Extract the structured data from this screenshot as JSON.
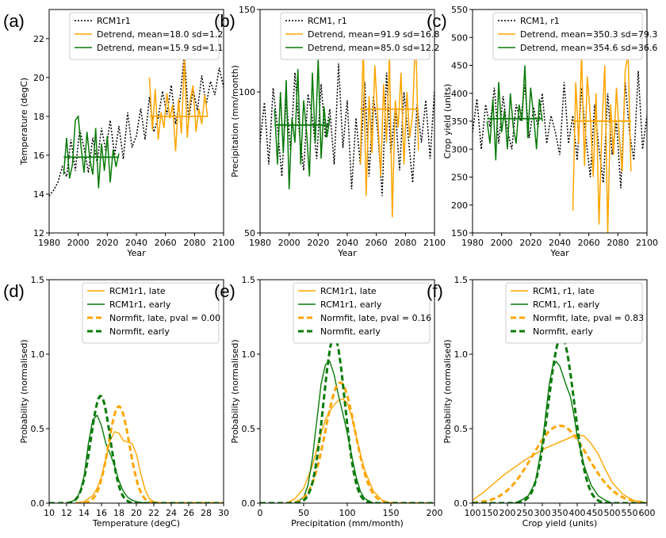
{
  "colors": {
    "model": "#000000",
    "late": "#ffa500",
    "early": "#087a08"
  },
  "chart_data": [
    {
      "type": "line",
      "panel": "(a)",
      "xlabel": "Year",
      "ylabel": "Temperature (degC)",
      "xlim": [
        1980,
        2100
      ],
      "ylim": [
        12,
        23.5
      ],
      "xticks": [
        1980,
        2000,
        2020,
        2040,
        2060,
        2080,
        2100
      ],
      "yticks": [
        12,
        14,
        16,
        18,
        20,
        22
      ],
      "legend": [
        "RCM1r1",
        "Detrend, mean=18.0 sd=1.2",
        "Detrend, mean=15.9 sd=1.1"
      ],
      "legend_placement": "top-right",
      "early_range": [
        1990,
        2028
      ],
      "late_range": [
        2049,
        2089
      ],
      "early_mean": 15.9,
      "late_mean": 18.0,
      "series": [
        {
          "role": "model",
          "x": [
            1980,
            1983,
            1986,
            1989,
            1992,
            1995,
            1998,
            2001,
            2004,
            2007,
            2010,
            2013,
            2016,
            2019,
            2022,
            2025,
            2028,
            2031,
            2034,
            2037,
            2040,
            2043,
            2046,
            2049,
            2052,
            2055,
            2058,
            2061,
            2064,
            2067,
            2070,
            2073,
            2076,
            2079,
            2082,
            2085,
            2088,
            2091,
            2094,
            2097,
            2100
          ],
          "y": [
            13.9,
            14.2,
            14.6,
            15.4,
            14.9,
            16.8,
            15.2,
            17.3,
            16.4,
            15.1,
            16.9,
            15.6,
            17.4,
            16.2,
            17.8,
            16.0,
            17.5,
            15.8,
            18.2,
            16.4,
            17.0,
            18.4,
            16.8,
            19.0,
            17.2,
            17.9,
            19.3,
            18.1,
            19.6,
            17.6,
            18.9,
            21.2,
            17.8,
            19.4,
            18.3,
            20.1,
            18.6,
            19.8,
            19.1,
            20.5,
            19.5
          ]
        },
        {
          "role": "early",
          "x": [
            1990,
            1992,
            1994,
            1996,
            1998,
            2000,
            2002,
            2004,
            2006,
            2008,
            2010,
            2012,
            2014,
            2016,
            2018,
            2020,
            2022,
            2024,
            2026,
            2028
          ],
          "y": [
            15.0,
            16.9,
            14.8,
            15.5,
            17.8,
            18.0,
            16.4,
            15.1,
            17.2,
            15.8,
            15.0,
            17.4,
            14.3,
            16.6,
            15.2,
            17.0,
            14.6,
            16.3,
            15.4,
            16.1
          ]
        },
        {
          "role": "late",
          "x": [
            2049,
            2051,
            2053,
            2055,
            2057,
            2059,
            2061,
            2063,
            2065,
            2067,
            2069,
            2071,
            2073,
            2075,
            2077,
            2079,
            2081,
            2083,
            2085,
            2087,
            2089
          ],
          "y": [
            20.0,
            17.3,
            19.4,
            16.8,
            18.2,
            17.4,
            19.2,
            17.9,
            18.6,
            16.2,
            18.9,
            17.1,
            21.0,
            16.9,
            18.8,
            19.6,
            17.2,
            18.4,
            17.6,
            19.1,
            18.0
          ]
        }
      ]
    },
    {
      "type": "line",
      "panel": "(b)",
      "xlabel": "Year",
      "ylabel": "Precipitation (mm/month)",
      "xlim": [
        1980,
        2100
      ],
      "ylim": [
        50,
        150
      ],
      "log_y": true,
      "xticks": [
        1980,
        2000,
        2020,
        2040,
        2060,
        2080,
        2100
      ],
      "yticks": [
        50,
        100,
        150
      ],
      "legend": [
        "RCM1, r1",
        "Detrend, mean=91.9 sd=16.8",
        "Detrend, mean=85.0 sd=12.2"
      ],
      "legend_placement": "top-right",
      "early_range": [
        1990,
        2028
      ],
      "late_range": [
        2049,
        2089
      ],
      "early_mean": 85.0,
      "late_mean": 91.9,
      "series": [
        {
          "role": "model",
          "x": [
            1980,
            1983,
            1986,
            1989,
            1992,
            1995,
            1998,
            2001,
            2004,
            2007,
            2010,
            2013,
            2016,
            2019,
            2022,
            2025,
            2028,
            2031,
            2034,
            2037,
            2040,
            2043,
            2046,
            2049,
            2052,
            2055,
            2058,
            2061,
            2064,
            2067,
            2070,
            2073,
            2076,
            2079,
            2082,
            2085,
            2088,
            2091,
            2094,
            2097,
            2100
          ],
          "y": [
            78,
            95,
            70,
            102,
            84,
            66,
            97,
            75,
            110,
            82,
            68,
            99,
            88,
            72,
            104,
            80,
            92,
            70,
            115,
            76,
            96,
            62,
            88,
            70,
            105,
            66,
            98,
            82,
            60,
            110,
            74,
            92,
            68,
            100,
            80,
            64,
            94,
            78,
            96,
            72,
            101
          ]
        },
        {
          "role": "early",
          "x": [
            1990,
            1992,
            1994,
            1996,
            1998,
            2000,
            2002,
            2004,
            2006,
            2008,
            2010,
            2012,
            2014,
            2016,
            2018,
            2020,
            2022,
            2024,
            2026,
            2028
          ],
          "y": [
            92,
            70,
            100,
            74,
            106,
            62,
            88,
            78,
            112,
            70,
            96,
            82,
            66,
            110,
            78,
            118,
            72,
            93,
            80,
            88
          ]
        },
        {
          "role": "late",
          "x": [
            2049,
            2051,
            2053,
            2055,
            2057,
            2059,
            2061,
            2063,
            2065,
            2067,
            2069,
            2071,
            2073,
            2075,
            2077,
            2079,
            2081,
            2083,
            2085,
            2087,
            2089
          ],
          "y": [
            70,
            126,
            60,
            98,
            74,
            114,
            88,
            66,
            104,
            78,
            120,
            54,
            96,
            84,
            110,
            70,
            100,
            80,
            90,
            136,
            75
          ]
        }
      ]
    },
    {
      "type": "line",
      "panel": "(c)",
      "xlabel": "Year",
      "ylabel": "Crop yield (units)",
      "xlim": [
        1980,
        2100
      ],
      "ylim": [
        150,
        550
      ],
      "xticks": [
        1980,
        2000,
        2020,
        2040,
        2060,
        2080,
        2100
      ],
      "yticks": [
        150,
        200,
        250,
        300,
        350,
        400,
        450,
        500,
        550
      ],
      "legend": [
        "RCM1, r1",
        "Detrend, mean=350.3 sd=79.3",
        "Detrend, mean=354.6 sd=36.6"
      ],
      "legend_placement": "top-right",
      "early_range": [
        1990,
        2028
      ],
      "late_range": [
        2049,
        2089
      ],
      "early_mean": 354.6,
      "late_mean": 350.3,
      "series": [
        {
          "role": "model",
          "x": [
            1980,
            1983,
            1986,
            1989,
            1992,
            1995,
            1998,
            2001,
            2004,
            2007,
            2010,
            2013,
            2016,
            2019,
            2022,
            2025,
            2028,
            2031,
            2034,
            2037,
            2040,
            2043,
            2046,
            2049,
            2052,
            2055,
            2058,
            2061,
            2064,
            2067,
            2070,
            2073,
            2076,
            2079,
            2082,
            2085,
            2088,
            2091,
            2094,
            2097,
            2100
          ],
          "y": [
            330,
            390,
            300,
            380,
            340,
            410,
            310,
            395,
            335,
            300,
            380,
            350,
            415,
            320,
            375,
            340,
            400,
            310,
            360,
            330,
            290,
            420,
            310,
            360,
            280,
            410,
            320,
            250,
            380,
            300,
            240,
            400,
            290,
            350,
            230,
            420,
            330,
            280,
            440,
            300,
            360
          ]
        },
        {
          "role": "early",
          "x": [
            1990,
            1992,
            1994,
            1996,
            1998,
            2000,
            2002,
            2004,
            2006,
            2008,
            2010,
            2012,
            2014,
            2016,
            2018,
            2020,
            2022,
            2024,
            2026,
            2028
          ],
          "y": [
            350,
            310,
            390,
            280,
            420,
            330,
            370,
            300,
            400,
            340,
            310,
            380,
            350,
            450,
            320,
            410,
            360,
            300,
            390,
            350
          ]
        },
        {
          "role": "late",
          "x": [
            2049,
            2051,
            2053,
            2055,
            2057,
            2059,
            2061,
            2063,
            2065,
            2067,
            2069,
            2071,
            2073,
            2075,
            2077,
            2079,
            2081,
            2083,
            2085,
            2087,
            2089
          ],
          "y": [
            190,
            420,
            310,
            470,
            270,
            430,
            360,
            250,
            400,
            165,
            340,
            450,
            150,
            380,
            290,
            410,
            320,
            260,
            440,
            470,
            260
          ]
        }
      ]
    },
    {
      "type": "line",
      "panel": "(d)",
      "xlabel": "Temperature (degC)",
      "ylabel": "Probability (normalised)",
      "xlim": [
        10,
        30
      ],
      "ylim": [
        0,
        1.5
      ],
      "xticks": [
        10,
        12,
        14,
        16,
        18,
        20,
        22,
        24,
        26,
        28,
        30
      ],
      "yticks": [
        0.0,
        0.5,
        1.0,
        1.5
      ],
      "ytick_labels": [
        "0.0",
        "0.5",
        "1.0",
        "1.5"
      ],
      "legend": [
        "RCM1r1, late",
        "RCM1r1, early",
        "Normfit, late, pval = 0.00",
        "Normfit, early"
      ],
      "legend_placement": "top-right",
      "normfit": [
        {
          "role": "late",
          "mean": 18.0,
          "sd": 1.2,
          "peak": 0.65
        },
        {
          "role": "early",
          "mean": 15.9,
          "sd": 1.1,
          "peak": 0.72
        }
      ],
      "series": [
        {
          "role": "late",
          "x": [
            13,
            14,
            15,
            15.5,
            16,
            16.5,
            17,
            17.5,
            18,
            18.5,
            19,
            19.5,
            20,
            20.5,
            21,
            21.5,
            22,
            23
          ],
          "y": [
            0.0,
            0.01,
            0.05,
            0.1,
            0.18,
            0.3,
            0.42,
            0.48,
            0.47,
            0.42,
            0.41,
            0.4,
            0.33,
            0.2,
            0.09,
            0.03,
            0.01,
            0.0
          ]
        },
        {
          "role": "early",
          "x": [
            12,
            13,
            13.5,
            14,
            14.5,
            15,
            15.5,
            16,
            16.5,
            17,
            17.5,
            18,
            18.5,
            19,
            19.5,
            20,
            21
          ],
          "y": [
            0.0,
            0.02,
            0.07,
            0.18,
            0.4,
            0.56,
            0.59,
            0.52,
            0.4,
            0.33,
            0.25,
            0.15,
            0.08,
            0.04,
            0.02,
            0.01,
            0.0
          ]
        }
      ]
    },
    {
      "type": "line",
      "panel": "(e)",
      "xlabel": "Precipitation (mm/month)",
      "ylabel": "Probability (normalised)",
      "xlim": [
        0,
        200
      ],
      "ylim": [
        0,
        1.5
      ],
      "xticks": [
        0,
        50,
        100,
        150,
        200
      ],
      "yticks": [
        0.0,
        0.5,
        1.0,
        1.5
      ],
      "ytick_labels": [
        "0.0",
        "0.5",
        "1.0",
        "1.5"
      ],
      "legend": [
        "RCM1r1, late",
        "RCM1r1, early",
        "Normfit, late, pval = 0.16",
        "Normfit, early"
      ],
      "legend_placement": "top-right",
      "normfit": [
        {
          "role": "late",
          "mean": 91.9,
          "sd": 16.8,
          "peak": 0.81
        },
        {
          "role": "early",
          "mean": 85.0,
          "sd": 12.2,
          "peak": 1.12
        }
      ],
      "series": [
        {
          "role": "late",
          "x": [
            30,
            40,
            50,
            60,
            65,
            70,
            75,
            80,
            85,
            90,
            95,
            100,
            105,
            110,
            115,
            120,
            130,
            140,
            150
          ],
          "y": [
            0.0,
            0.03,
            0.1,
            0.25,
            0.36,
            0.47,
            0.56,
            0.62,
            0.66,
            0.69,
            0.7,
            0.67,
            0.58,
            0.46,
            0.33,
            0.22,
            0.08,
            0.02,
            0.0
          ]
        },
        {
          "role": "early",
          "x": [
            40,
            50,
            55,
            60,
            65,
            70,
            75,
            80,
            85,
            90,
            95,
            100,
            105,
            110,
            115,
            120,
            130
          ],
          "y": [
            0.0,
            0.04,
            0.12,
            0.3,
            0.55,
            0.8,
            0.93,
            0.95,
            0.86,
            0.72,
            0.6,
            0.47,
            0.32,
            0.18,
            0.08,
            0.03,
            0.0
          ]
        }
      ]
    },
    {
      "type": "line",
      "panel": "(f)",
      "xlabel": "Crop yield (units)",
      "ylabel": "Probability (normalised)",
      "xlim": [
        100,
        600
      ],
      "ylim": [
        0,
        1.5
      ],
      "xticks": [
        100,
        150,
        200,
        250,
        300,
        350,
        400,
        450,
        500,
        550,
        600
      ],
      "yticks": [
        0.0,
        0.5,
        1.0,
        1.5
      ],
      "ytick_labels": [
        "0.0",
        "0.5",
        "1.0",
        "1.5"
      ],
      "legend": [
        "RCM1, r1, late",
        "RCM1, r1, early",
        "Normfit, late, pval = 0.83",
        "Normfit, early"
      ],
      "legend_placement": "top-right",
      "normfit": [
        {
          "role": "late",
          "mean": 350.3,
          "sd": 79.3,
          "peak": 0.52
        },
        {
          "role": "early",
          "mean": 354.6,
          "sd": 36.6,
          "peak": 1.12
        }
      ],
      "series": [
        {
          "role": "late",
          "x": [
            100,
            130,
            160,
            190,
            220,
            250,
            280,
            310,
            340,
            370,
            400,
            420,
            440,
            460,
            480,
            500,
            530,
            560,
            600
          ],
          "y": [
            0.02,
            0.07,
            0.13,
            0.19,
            0.24,
            0.29,
            0.33,
            0.37,
            0.4,
            0.43,
            0.46,
            0.45,
            0.4,
            0.33,
            0.23,
            0.14,
            0.06,
            0.02,
            0.0
          ]
        },
        {
          "role": "early",
          "x": [
            220,
            240,
            260,
            280,
            300,
            310,
            320,
            330,
            340,
            350,
            360,
            370,
            380,
            390,
            400,
            420,
            440,
            460,
            480,
            500
          ],
          "y": [
            0.0,
            0.02,
            0.05,
            0.14,
            0.4,
            0.6,
            0.8,
            0.92,
            0.95,
            0.92,
            0.85,
            0.78,
            0.72,
            0.6,
            0.45,
            0.25,
            0.12,
            0.05,
            0.02,
            0.0
          ]
        }
      ]
    }
  ]
}
